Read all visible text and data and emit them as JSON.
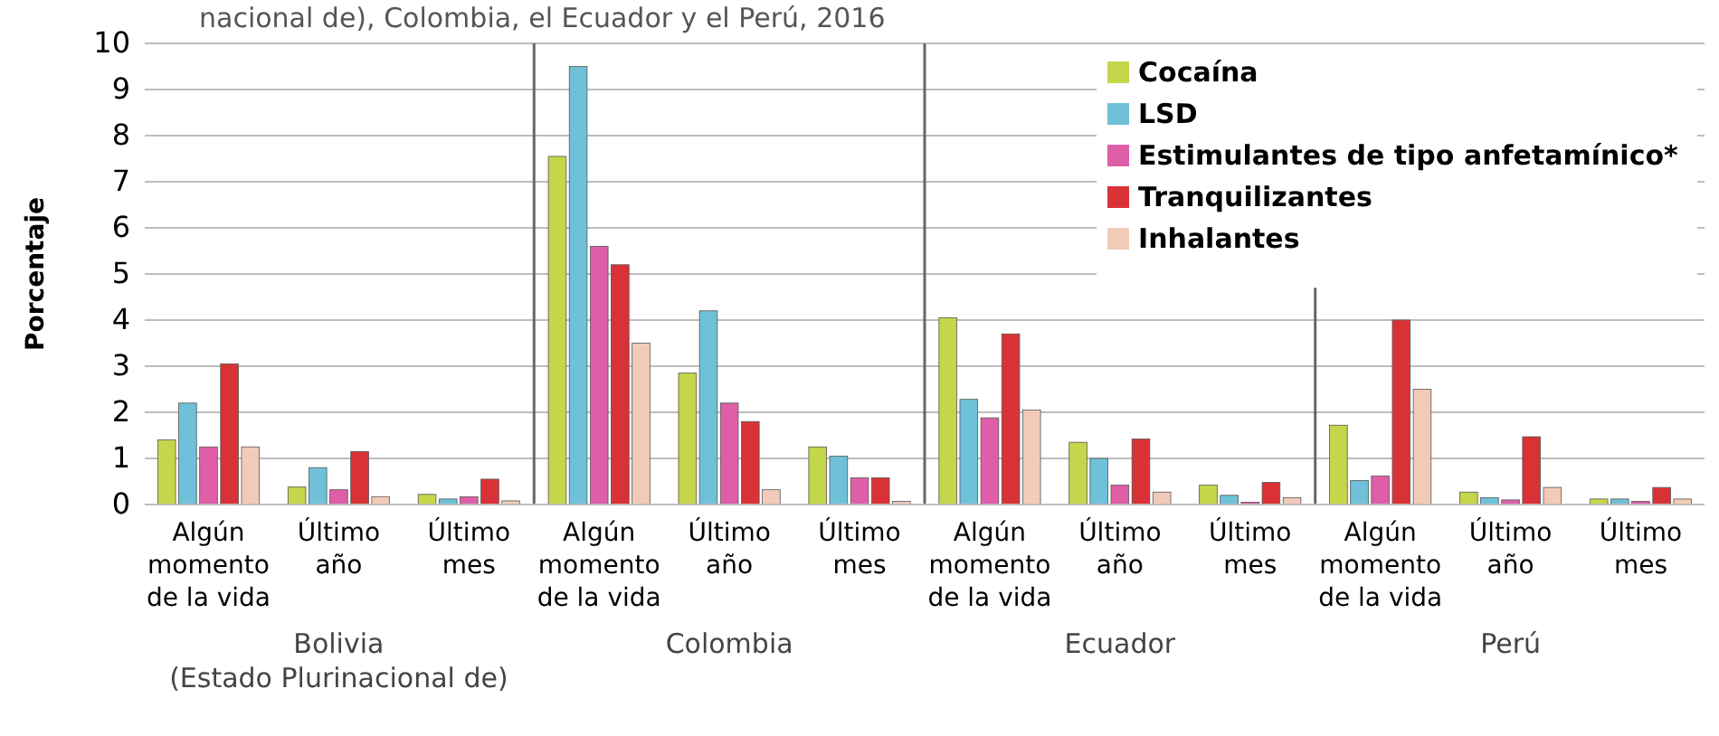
{
  "chart_data": {
    "type": "bar",
    "title": "nacional de), Colombia, el Ecuador y el Perú, 2016",
    "ylabel": "Porcentaje",
    "categories": [
      "Algún momento de la vida",
      "Último año",
      "Último mes",
      "Algún momento de la vida",
      "Último año",
      "Último mes",
      "Algún momento de la vida",
      "Último año",
      "Último mes",
      "Algún momento de la vida",
      "Último año",
      "Último mes"
    ],
    "series": [
      {
        "name": "Cocaína",
        "color": "#c5d64a",
        "values": [
          1.4,
          0.38,
          0.22,
          7.55,
          2.85,
          1.25,
          4.05,
          1.35,
          0.42,
          1.72,
          0.27,
          0.12
        ]
      },
      {
        "name": "LSD",
        "color": "#6ec1d8",
        "values": [
          2.2,
          0.8,
          0.12,
          9.5,
          4.2,
          1.05,
          2.28,
          1.0,
          0.2,
          0.52,
          0.15,
          0.12
        ]
      },
      {
        "name": "Estimulantes de tipo anfetamínico*",
        "color": "#de5fa8",
        "values": [
          1.25,
          0.32,
          0.17,
          5.6,
          2.2,
          0.58,
          1.88,
          0.42,
          0.05,
          0.62,
          0.1,
          0.07
        ]
      },
      {
        "name": "Tranquilizantes",
        "color": "#d93236",
        "values": [
          3.05,
          1.15,
          0.55,
          5.2,
          1.8,
          0.58,
          3.7,
          1.42,
          0.48,
          4.0,
          1.47,
          0.37
        ]
      },
      {
        "name": "Inhalantes",
        "color": "#f2cbb8",
        "values": [
          1.25,
          0.17,
          0.08,
          3.5,
          0.32,
          0.07,
          2.05,
          0.27,
          0.15,
          2.5,
          0.37,
          0.12
        ]
      }
    ],
    "annotations": [
      "Bolivia\n(Estado Plurinacional de)",
      "Colombia",
      "Ecuador",
      "Perú"
    ],
    "ylim": [
      0,
      10
    ],
    "yticks": [
      0,
      1,
      2,
      3,
      4,
      5,
      6,
      7,
      8,
      9,
      10
    ],
    "grid": "y",
    "legend": "top right"
  }
}
